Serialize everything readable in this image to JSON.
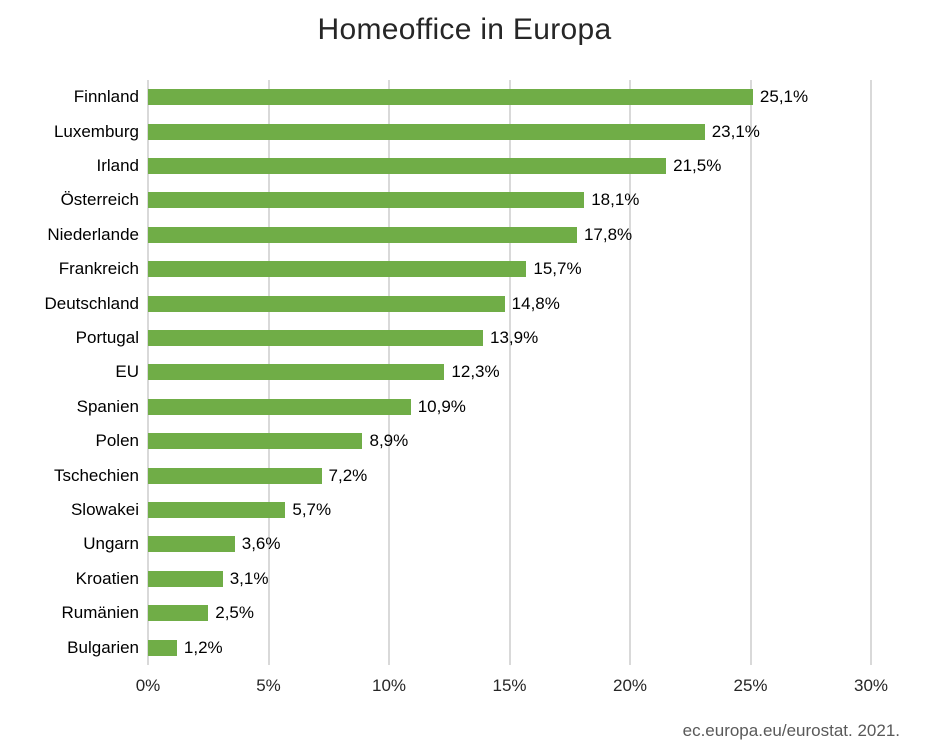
{
  "title": "Homeoffice in Europa",
  "footer": {
    "source": "ec.europa.eu/eurostat. 2021."
  },
  "chart_data": {
    "type": "bar",
    "orientation": "horizontal",
    "title": "Homeoffice in Europa",
    "categories": [
      "Finnland",
      "Luxemburg",
      "Irland",
      "Österreich",
      "Niederlande",
      "Frankreich",
      "Deutschland",
      "Portugal",
      "EU",
      "Spanien",
      "Polen",
      "Tschechien",
      "Slowakei",
      "Ungarn",
      "Kroatien",
      "Rumänien",
      "Bulgarien"
    ],
    "values": [
      25.1,
      23.1,
      21.5,
      18.1,
      17.8,
      15.7,
      14.8,
      13.9,
      12.3,
      10.9,
      8.9,
      7.2,
      5.7,
      3.6,
      3.1,
      2.5,
      1.2
    ],
    "value_labels": [
      "25,1%",
      "23,1%",
      "21,5%",
      "18,1%",
      "17,8%",
      "15,7%",
      "14,8%",
      "13,9%",
      "12,3%",
      "10,9%",
      "8,9%",
      "7,2%",
      "5,7%",
      "3,6%",
      "3,1%",
      "2,5%",
      "1,2%"
    ],
    "x_ticks": [
      "0%",
      "5%",
      "10%",
      "15%",
      "20%",
      "25%",
      "30%"
    ],
    "x_tick_values": [
      0,
      5,
      10,
      15,
      20,
      25,
      30
    ],
    "xlim": [
      0,
      30
    ],
    "xlabel": "",
    "ylabel": "",
    "grid": true,
    "legend": false,
    "bar_color": "#70AD47",
    "gridline_color": "#D9D9D9",
    "source": "ec.europa.eu/eurostat. 2021."
  }
}
